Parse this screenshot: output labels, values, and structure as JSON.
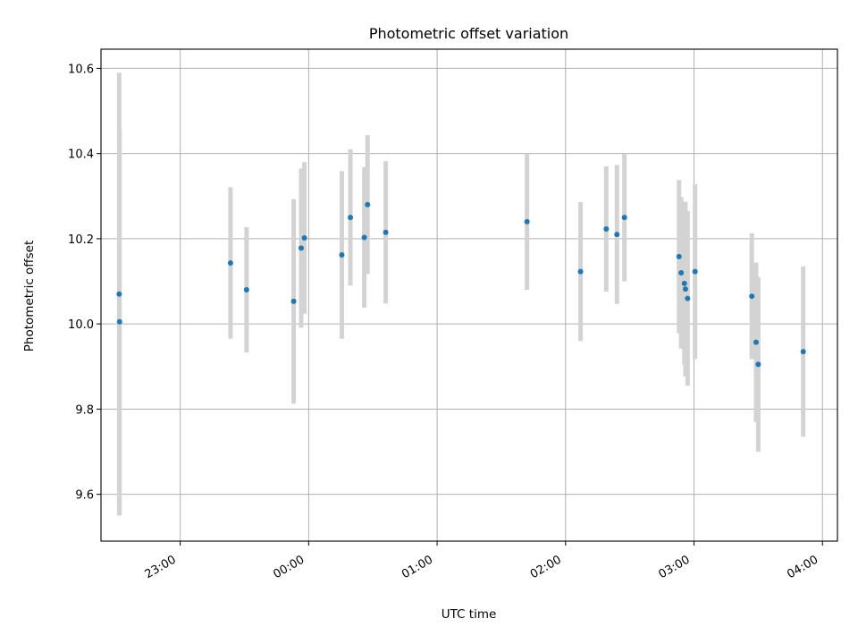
{
  "chart_data": {
    "type": "scatter",
    "title": "Photometric offset variation",
    "xlabel": "UTC time",
    "ylabel": "Photometric offset",
    "x_unit": "UTC time of day",
    "grid": true,
    "xlim": [
      "22:23",
      "04:07"
    ],
    "ylim": [
      9.49,
      10.645
    ],
    "x_ticks": [
      "23:00",
      "00:00",
      "01:00",
      "02:00",
      "03:00",
      "04:00"
    ],
    "y_ticks": [
      9.6,
      9.8,
      10.0,
      10.2,
      10.4,
      10.6
    ],
    "y_tick_labels": [
      "9.6",
      "9.8",
      "10.0",
      "10.2",
      "10.4",
      "10.6"
    ],
    "colors": {
      "points": "#1f77b4",
      "error_bars": "#d3d3d3",
      "grid": "#b0b0b0"
    },
    "series": [
      {
        "points": [
          {
            "t": "22:31:30",
            "y": 10.07,
            "err": 0.52
          },
          {
            "t": "22:31:40",
            "y": 10.005,
            "err": 0.455
          },
          {
            "t": "23:23:30",
            "y": 10.143,
            "err": 0.178
          },
          {
            "t": "23:31:00",
            "y": 10.08,
            "err": 0.147
          },
          {
            "t": "23:53:00",
            "y": 10.053,
            "err": 0.24
          },
          {
            "t": "23:56:30",
            "y": 10.178,
            "err": 0.187
          },
          {
            "t": "23:58:00",
            "y": 10.202,
            "err": 0.178
          },
          {
            "t": "00:15:30",
            "y": 10.162,
            "err": 0.197
          },
          {
            "t": "00:19:30",
            "y": 10.25,
            "err": 0.16
          },
          {
            "t": "00:26:00",
            "y": 10.203,
            "err": 0.165
          },
          {
            "t": "00:27:30",
            "y": 10.28,
            "err": 0.163
          },
          {
            "t": "00:36:00",
            "y": 10.215,
            "err": 0.167
          },
          {
            "t": "01:42:00",
            "y": 10.24,
            "err": 0.16
          },
          {
            "t": "02:07:00",
            "y": 10.123,
            "err": 0.163
          },
          {
            "t": "02:19:00",
            "y": 10.223,
            "err": 0.147
          },
          {
            "t": "02:24:00",
            "y": 10.21,
            "err": 0.163
          },
          {
            "t": "02:27:30",
            "y": 10.25,
            "err": 0.15
          },
          {
            "t": "02:53:00",
            "y": 10.158,
            "err": 0.18
          },
          {
            "t": "02:54:00",
            "y": 10.12,
            "err": 0.178
          },
          {
            "t": "02:55:30",
            "y": 10.095,
            "err": 0.19
          },
          {
            "t": "02:56:00",
            "y": 10.082,
            "err": 0.205
          },
          {
            "t": "02:57:00",
            "y": 10.06,
            "err": 0.205
          },
          {
            "t": "03:00:30",
            "y": 10.123,
            "err": 0.205
          },
          {
            "t": "03:27:00",
            "y": 10.065,
            "err": 0.148
          },
          {
            "t": "03:29:00",
            "y": 9.957,
            "err": 0.187
          },
          {
            "t": "03:30:00",
            "y": 9.905,
            "err": 0.205
          },
          {
            "t": "03:51:00",
            "y": 9.935,
            "err": 0.2
          }
        ]
      }
    ]
  }
}
